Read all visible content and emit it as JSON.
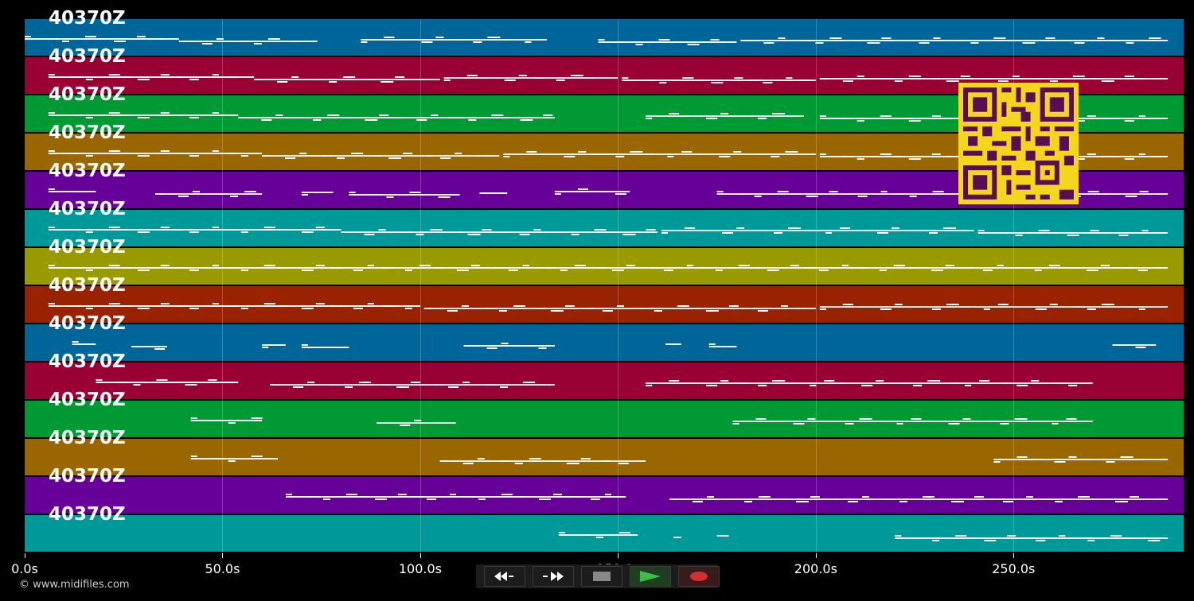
{
  "tracks": [
    {
      "label": "40370Z",
      "color": "#006699"
    },
    {
      "label": "40370Z",
      "color": "#990033"
    },
    {
      "label": "40370Z",
      "color": "#009933"
    },
    {
      "label": "40370Z",
      "color": "#996600"
    },
    {
      "label": "40370Z",
      "color": "#660099"
    },
    {
      "label": "40370Z",
      "color": "#009999"
    },
    {
      "label": "40370Z",
      "color": "#999900"
    },
    {
      "label": "40370Z",
      "color": "#992200"
    },
    {
      "label": "40370Z",
      "color": "#006699"
    },
    {
      "label": "40370Z",
      "color": "#990033"
    },
    {
      "label": "40370Z",
      "color": "#009933"
    },
    {
      "label": "40370Z",
      "color": "#996600"
    },
    {
      "label": "40370Z",
      "color": "#660099"
    },
    {
      "label": "40370Z",
      "color": "#009999"
    }
  ],
  "time_axis": {
    "ticks": [
      "0.0s",
      "50.0s",
      "100.0s",
      "150.0s",
      "200.0s",
      "250.0s"
    ],
    "tick_values": [
      0,
      50,
      100,
      150,
      200,
      250
    ],
    "max_seconds": 293
  },
  "copyright": "© www.midifiles.com",
  "transport": [
    {
      "name": "rewind-icon",
      "color": "#ffffff"
    },
    {
      "name": "fast-forward-icon",
      "color": "#ffffff"
    },
    {
      "name": "stop-icon",
      "color": "#888888"
    },
    {
      "name": "play-icon",
      "color": "#3fbf4a"
    },
    {
      "name": "record-icon",
      "color": "#d03030"
    }
  ],
  "qr_colors": {
    "bg": "#f4d61e",
    "fg": "#5a0e52"
  },
  "note_segments": [
    [
      [
        0,
        39
      ],
      [
        39,
        74
      ],
      [
        85,
        132
      ],
      [
        145,
        180
      ],
      [
        181,
        289
      ]
    ],
    [
      [
        6,
        58
      ],
      [
        58,
        105
      ],
      [
        106,
        150
      ],
      [
        151,
        200
      ],
      [
        201,
        289
      ]
    ],
    [
      [
        6,
        54
      ],
      [
        54,
        134
      ],
      [
        157,
        197
      ],
      [
        201,
        289
      ]
    ],
    [
      [
        6,
        60
      ],
      [
        60,
        120
      ],
      [
        121,
        200
      ],
      [
        201,
        289
      ]
    ],
    [
      [
        6,
        18
      ],
      [
        33,
        60
      ],
      [
        70,
        78
      ],
      [
        82,
        110
      ],
      [
        115,
        122
      ],
      [
        134,
        153
      ],
      [
        175,
        289
      ]
    ],
    [
      [
        6,
        80
      ],
      [
        80,
        160
      ],
      [
        161,
        240
      ],
      [
        241,
        289
      ]
    ],
    [
      [
        6,
        289
      ]
    ],
    [
      [
        6,
        100
      ],
      [
        101,
        200
      ],
      [
        201,
        289
      ]
    ],
    [
      [
        12,
        18
      ],
      [
        27,
        36
      ],
      [
        60,
        66
      ],
      [
        70,
        82
      ],
      [
        111,
        134
      ],
      [
        162,
        166
      ],
      [
        173,
        180
      ],
      [
        275,
        286
      ]
    ],
    [
      [
        18,
        54
      ],
      [
        62,
        134
      ],
      [
        157,
        270
      ]
    ],
    [
      [
        42,
        60
      ],
      [
        89,
        109
      ],
      [
        179,
        270
      ]
    ],
    [
      [
        42,
        64
      ],
      [
        105,
        157
      ],
      [
        245,
        289
      ]
    ],
    [
      [
        66,
        152
      ],
      [
        163,
        289
      ]
    ],
    [
      [
        135,
        155
      ],
      [
        164,
        166
      ],
      [
        175,
        178
      ],
      [
        220,
        289
      ]
    ]
  ]
}
